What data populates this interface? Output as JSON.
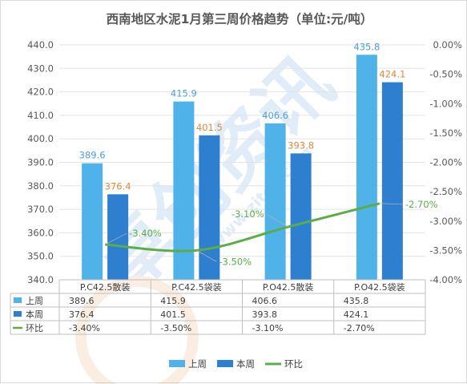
{
  "chart_data": {
    "type": "bar",
    "title": "西南地区水泥1月第三周价格趋势（单位:元/吨）",
    "categories": [
      "P.C42.5散装",
      "P.C42.5袋装",
      "P.O42.5散装",
      "P.O42.5袋装"
    ],
    "series": [
      {
        "name": "上周",
        "kind": "bar",
        "axis": "left",
        "color": "#4fb3ea",
        "values": [
          389.6,
          415.9,
          406.6,
          435.8
        ],
        "labels": [
          "389.6",
          "415.9",
          "406.6",
          "435.8"
        ],
        "label_color": "#4a9fd8"
      },
      {
        "name": "本周",
        "kind": "bar",
        "axis": "left",
        "color": "#2f7fd0",
        "values": [
          376.4,
          401.5,
          393.8,
          424.1
        ],
        "labels": [
          "376.4",
          "401.5",
          "393.8",
          "424.1"
        ],
        "label_color": "#e0883a"
      },
      {
        "name": "环比",
        "kind": "line",
        "axis": "right",
        "color": "#5aad47",
        "values": [
          -3.4,
          -3.5,
          -3.1,
          -2.7
        ],
        "labels": [
          "-3.40%",
          "-3.50%",
          "-3.10%",
          "-2.70%"
        ],
        "label_color": "#5aad47"
      }
    ],
    "left_axis": {
      "min": 340,
      "max": 440,
      "step": 10,
      "ticks": [
        "440.0",
        "430.0",
        "420.0",
        "410.0",
        "400.0",
        "390.0",
        "380.0",
        "370.0",
        "360.0",
        "350.0",
        "340.0"
      ]
    },
    "right_axis": {
      "min": -4.0,
      "max": 0.0,
      "step": 0.5,
      "ticks": [
        "0.00%",
        "-0.50%",
        "-1.00%",
        "-1.50%",
        "-2.00%",
        "-2.50%",
        "-3.00%",
        "-3.50%",
        "-4.00%"
      ]
    },
    "grid": true,
    "legend_position": "bottom",
    "data_table": {
      "rows": [
        {
          "name": "上周",
          "values": [
            "389.6",
            "415.9",
            "406.6",
            "435.8"
          ]
        },
        {
          "name": "本周",
          "values": [
            "376.4",
            "401.5",
            "393.8",
            "424.1"
          ]
        },
        {
          "name": "环比",
          "values": [
            "-3.40%",
            "-3.50%",
            "-3.10%",
            "-2.70%"
          ]
        }
      ]
    }
  },
  "watermark": {
    "text": "卓创资讯",
    "site": "www.zitcn.com"
  }
}
